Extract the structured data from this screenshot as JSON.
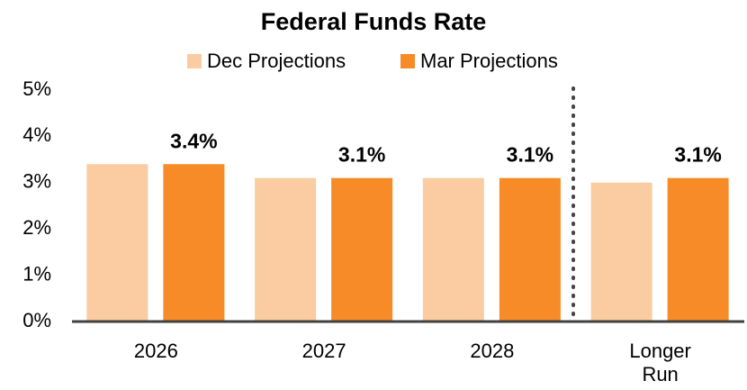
{
  "chart_data": {
    "type": "bar",
    "title": "Federal Funds Rate",
    "categories": [
      "2026",
      "2027",
      "2028",
      "Longer Run"
    ],
    "series": [
      {
        "name": "Dec Projections",
        "color": "#fbcba1",
        "values": [
          3.4,
          3.1,
          3.1,
          3.0
        ]
      },
      {
        "name": "Mar Projections",
        "color": "#f68b28",
        "values": [
          3.4,
          3.1,
          3.1,
          3.1
        ],
        "value_labels": [
          "3.4%",
          "3.1%",
          "3.1%",
          "3.1%"
        ]
      }
    ],
    "ylim": [
      0,
      5
    ],
    "yticks": [
      {
        "value": 0,
        "label": "0%"
      },
      {
        "value": 1,
        "label": "1%"
      },
      {
        "value": 2,
        "label": "2%"
      },
      {
        "value": 3,
        "label": "3%"
      },
      {
        "value": 4,
        "label": "4%"
      },
      {
        "value": 5,
        "label": "5%"
      }
    ],
    "grid": false,
    "legend": "top"
  }
}
